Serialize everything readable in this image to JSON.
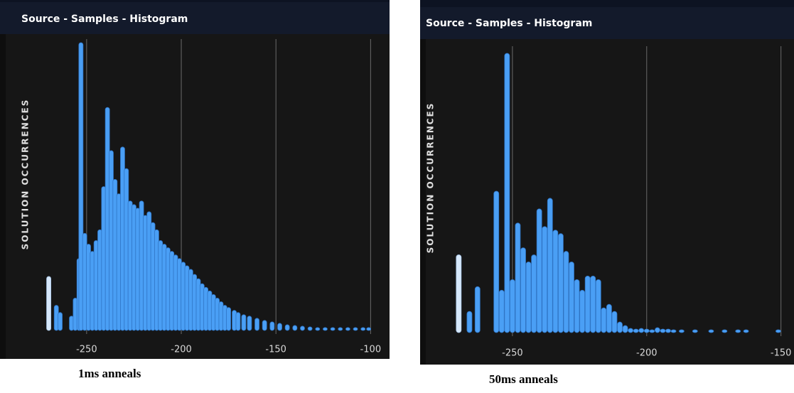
{
  "chart_data": [
    {
      "type": "bar",
      "title": "Source - Samples - Histogram",
      "y_label": "SOLUTION OCCURRENCES",
      "caption": "1ms anneals",
      "x": [
        -270,
        -266,
        -264,
        -258,
        -256,
        -254,
        -253,
        -251,
        -249,
        -247,
        -245,
        -243,
        -241,
        -239,
        -237,
        -235,
        -233,
        -231,
        -229,
        -227,
        -225,
        -223,
        -221,
        -219,
        -217,
        -215,
        -213,
        -211,
        -209,
        -207,
        -205,
        -203,
        -201,
        -199,
        -197,
        -195,
        -193,
        -191,
        -189,
        -187,
        -185,
        -183,
        -181,
        -179,
        -177,
        -175,
        -172,
        -170,
        -167,
        -164,
        -160,
        -156,
        -152,
        -148,
        -144,
        -140,
        -136,
        -132,
        -128,
        -124,
        -120,
        -116,
        -112,
        -108,
        -104,
        -101
      ],
      "values": [
        75,
        35,
        25,
        20,
        45,
        100,
        400,
        135,
        120,
        110,
        125,
        140,
        200,
        310,
        250,
        210,
        190,
        255,
        225,
        180,
        175,
        170,
        180,
        160,
        165,
        150,
        140,
        125,
        120,
        115,
        110,
        105,
        100,
        95,
        90,
        85,
        78,
        72,
        65,
        60,
        55,
        50,
        45,
        40,
        35,
        32,
        28,
        25,
        22,
        20,
        17,
        14,
        12,
        10,
        8,
        7,
        6,
        5,
        4,
        4,
        4,
        4,
        4,
        4,
        4,
        4
      ],
      "color": "#4a9ff5",
      "lowest_color": "#d6e8fb",
      "xlim": [
        -292,
        -93
      ],
      "xticks": [
        -250,
        -200,
        -150,
        -100
      ],
      "ylim": [
        0,
        400
      ],
      "grid": true
    },
    {
      "type": "bar",
      "title": "Source - Samples - Histogram",
      "y_label": "SOLUTION OCCURRENCES",
      "caption": "50ms anneals",
      "x": [
        -270,
        -266,
        -263,
        -256,
        -254,
        -252,
        -250,
        -248,
        -246,
        -244,
        -242,
        -240,
        -238,
        -236,
        -234,
        -232,
        -230,
        -228,
        -226,
        -224,
        -222,
        -220,
        -218,
        -216,
        -214,
        -212,
        -210,
        -208,
        -206,
        -204,
        -202,
        -200,
        -198,
        -196,
        -194,
        -192,
        -190,
        -187,
        -182,
        -176,
        -171,
        -166,
        -163,
        -151
      ],
      "values": [
        110,
        30,
        65,
        200,
        60,
        395,
        75,
        155,
        120,
        100,
        110,
        175,
        150,
        190,
        145,
        140,
        115,
        100,
        75,
        60,
        80,
        80,
        75,
        35,
        40,
        30,
        15,
        10,
        6,
        5,
        6,
        5,
        4,
        7,
        5,
        5,
        4,
        4,
        4,
        4,
        4,
        4,
        4,
        4
      ],
      "color": "#4a9ff5",
      "lowest_color": "#d6e8fb",
      "xlim": [
        -282,
        -147
      ],
      "xticks": [
        -250,
        -200,
        -150
      ],
      "ylim": [
        0,
        400
      ],
      "grid": true
    }
  ]
}
